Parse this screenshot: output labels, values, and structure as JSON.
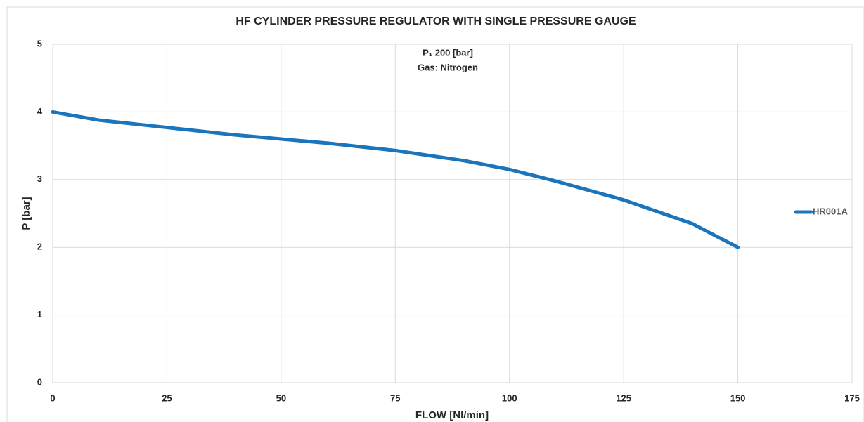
{
  "chart_data": {
    "type": "line",
    "title": "HF CYLINDER PRESSURE REGULATOR WITH SINGLE PRESSURE GAUGE",
    "annotations": [
      "P₁ 200 [bar]",
      "Gas: Nitrogen"
    ],
    "x_label": "FLOW [Nl/min]",
    "y_label": "P [bar]",
    "x": [
      0,
      10,
      25,
      40,
      50,
      60,
      75,
      90,
      100,
      110,
      125,
      140,
      150
    ],
    "series": [
      {
        "name": "HR001A",
        "color": "#1b75bc",
        "values": [
          4.0,
          3.88,
          3.77,
          3.66,
          3.6,
          3.54,
          3.43,
          3.28,
          3.15,
          2.98,
          2.7,
          2.35,
          2.0
        ]
      }
    ],
    "xlim": [
      0,
      175
    ],
    "xticks": [
      0,
      25,
      50,
      75,
      100,
      125,
      150,
      175
    ],
    "ylim": [
      0,
      5
    ],
    "yticks": [
      0,
      1,
      2,
      3,
      4,
      5
    ],
    "grid": true,
    "legend": "right"
  }
}
